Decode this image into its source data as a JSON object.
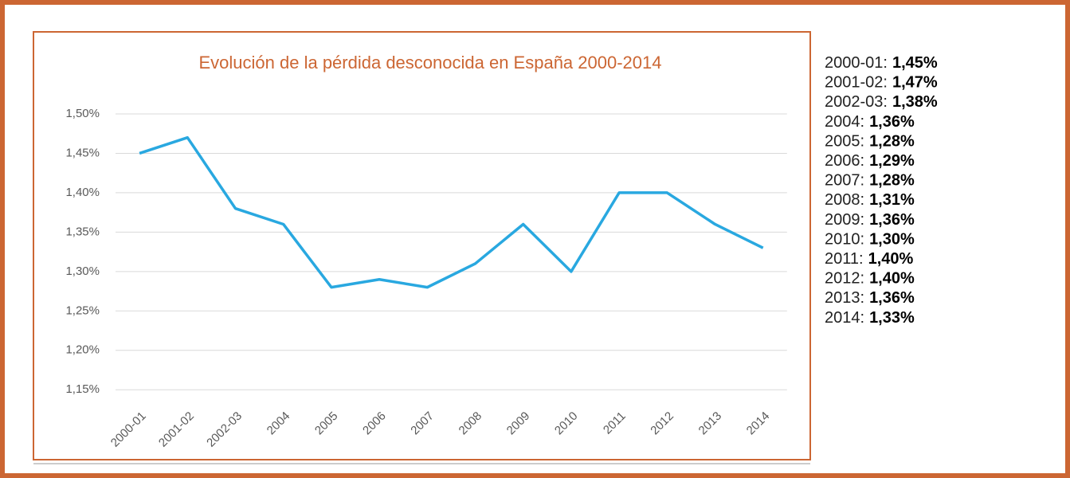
{
  "chart_data": {
    "type": "line",
    "title": "Evolución de la pérdida desconocida en España 2000-2014",
    "categories": [
      "2000-01",
      "2001-02",
      "2002-03",
      "2004",
      "2005",
      "2006",
      "2007",
      "2008",
      "2009",
      "2010",
      "2011",
      "2012",
      "2013",
      "2014"
    ],
    "series": [
      {
        "name": "Pérdida desconocida",
        "color": "#29a8e0",
        "values": [
          1.45,
          1.47,
          1.38,
          1.36,
          1.28,
          1.29,
          1.28,
          1.31,
          1.36,
          1.3,
          1.4,
          1.4,
          1.36,
          1.33
        ],
        "value_labels": [
          "1,45%",
          "1,47%",
          "1,38%",
          "1,36%",
          "1,28%",
          "1,29%",
          "1,28%",
          "1,31%",
          "1,36%",
          "1,30%",
          "1,40%",
          "1,40%",
          "1,36%",
          "1,33%"
        ]
      }
    ],
    "list_labels": [
      "2000-01:",
      "2001-02:",
      "2002-03:",
      "2004:",
      "2005:",
      "2006:",
      "2007:",
      "2008:",
      "2009:",
      "2010:",
      "2011:",
      "2012:",
      "2013:",
      "2014:"
    ],
    "ylim": [
      1.13,
      1.5
    ],
    "yticks": [
      {
        "value": 1.15,
        "label": "1,15%"
      },
      {
        "value": 1.2,
        "label": "1,20%"
      },
      {
        "value": 1.25,
        "label": "1,25%"
      },
      {
        "value": 1.3,
        "label": "1,30%"
      },
      {
        "value": 1.35,
        "label": "1,35%"
      },
      {
        "value": 1.4,
        "label": "1,40%"
      },
      {
        "value": 1.45,
        "label": "1,45%"
      },
      {
        "value": 1.5,
        "label": "1,50%"
      }
    ],
    "grid": true
  }
}
